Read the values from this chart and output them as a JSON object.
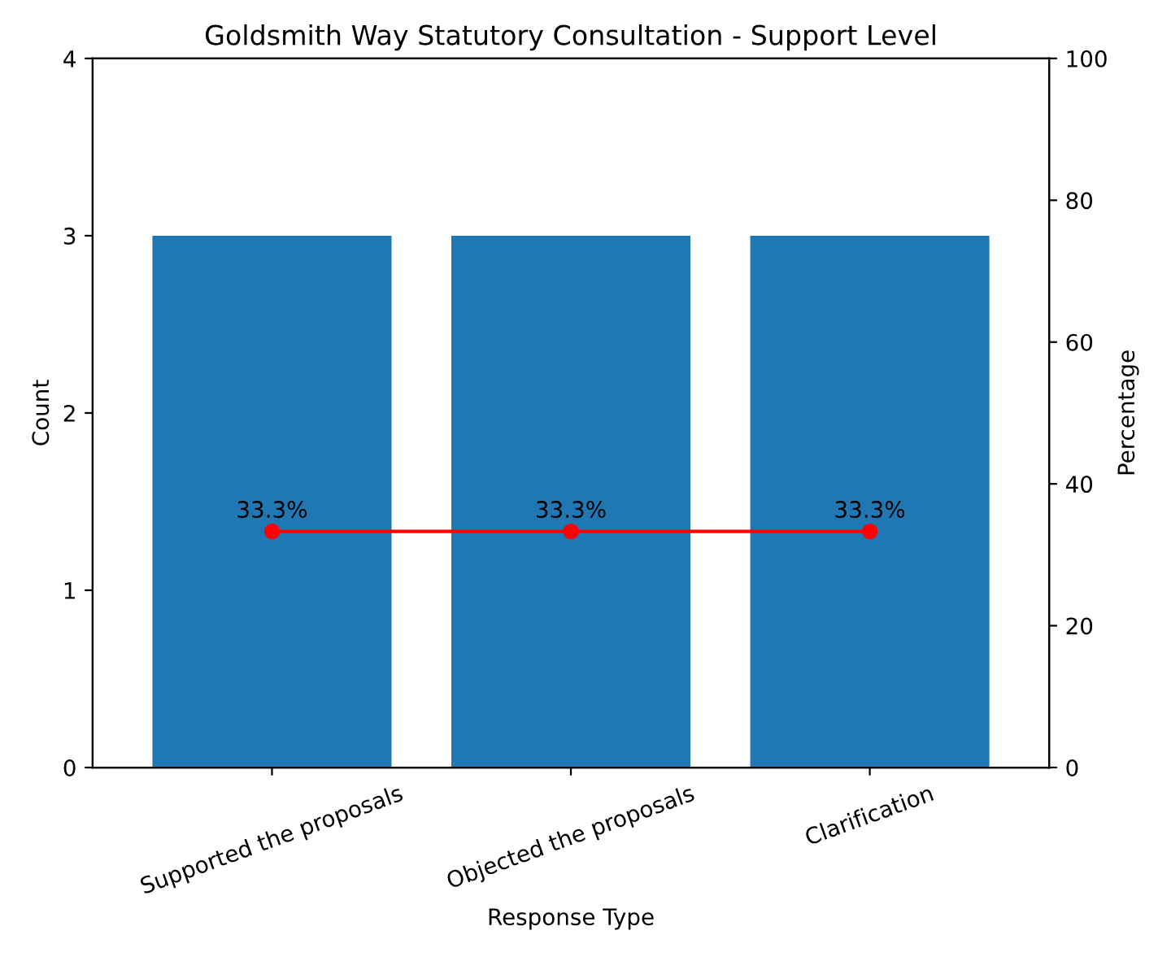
{
  "chart_data": {
    "type": "bar",
    "title": "Goldsmith Way Statutory Consultation - Support Level",
    "xlabel": "Response Type",
    "ylabel": "Count",
    "y2label": "Percentage",
    "categories": [
      "Supported the proposals",
      "Objected the proposals",
      "Clarification"
    ],
    "series": [
      {
        "color": "#1f77b4",
        "values": [
          3,
          3,
          3
        ]
      },
      {
        "type": "line",
        "axis": "y2",
        "color": "#ff0000",
        "values": [
          33.3,
          33.3,
          33.3
        ],
        "value_labels": [
          "33.3%",
          "33.3%",
          "33.3%"
        ]
      }
    ],
    "marker": "circle",
    "line_style": "solid",
    "ylim": [
      0,
      4
    ],
    "yticks": [
      0,
      1,
      2,
      3,
      4
    ],
    "y2lim": [
      0,
      100
    ],
    "y2ticks": [
      0,
      20,
      40,
      60,
      80,
      100
    ],
    "grid": false
  }
}
